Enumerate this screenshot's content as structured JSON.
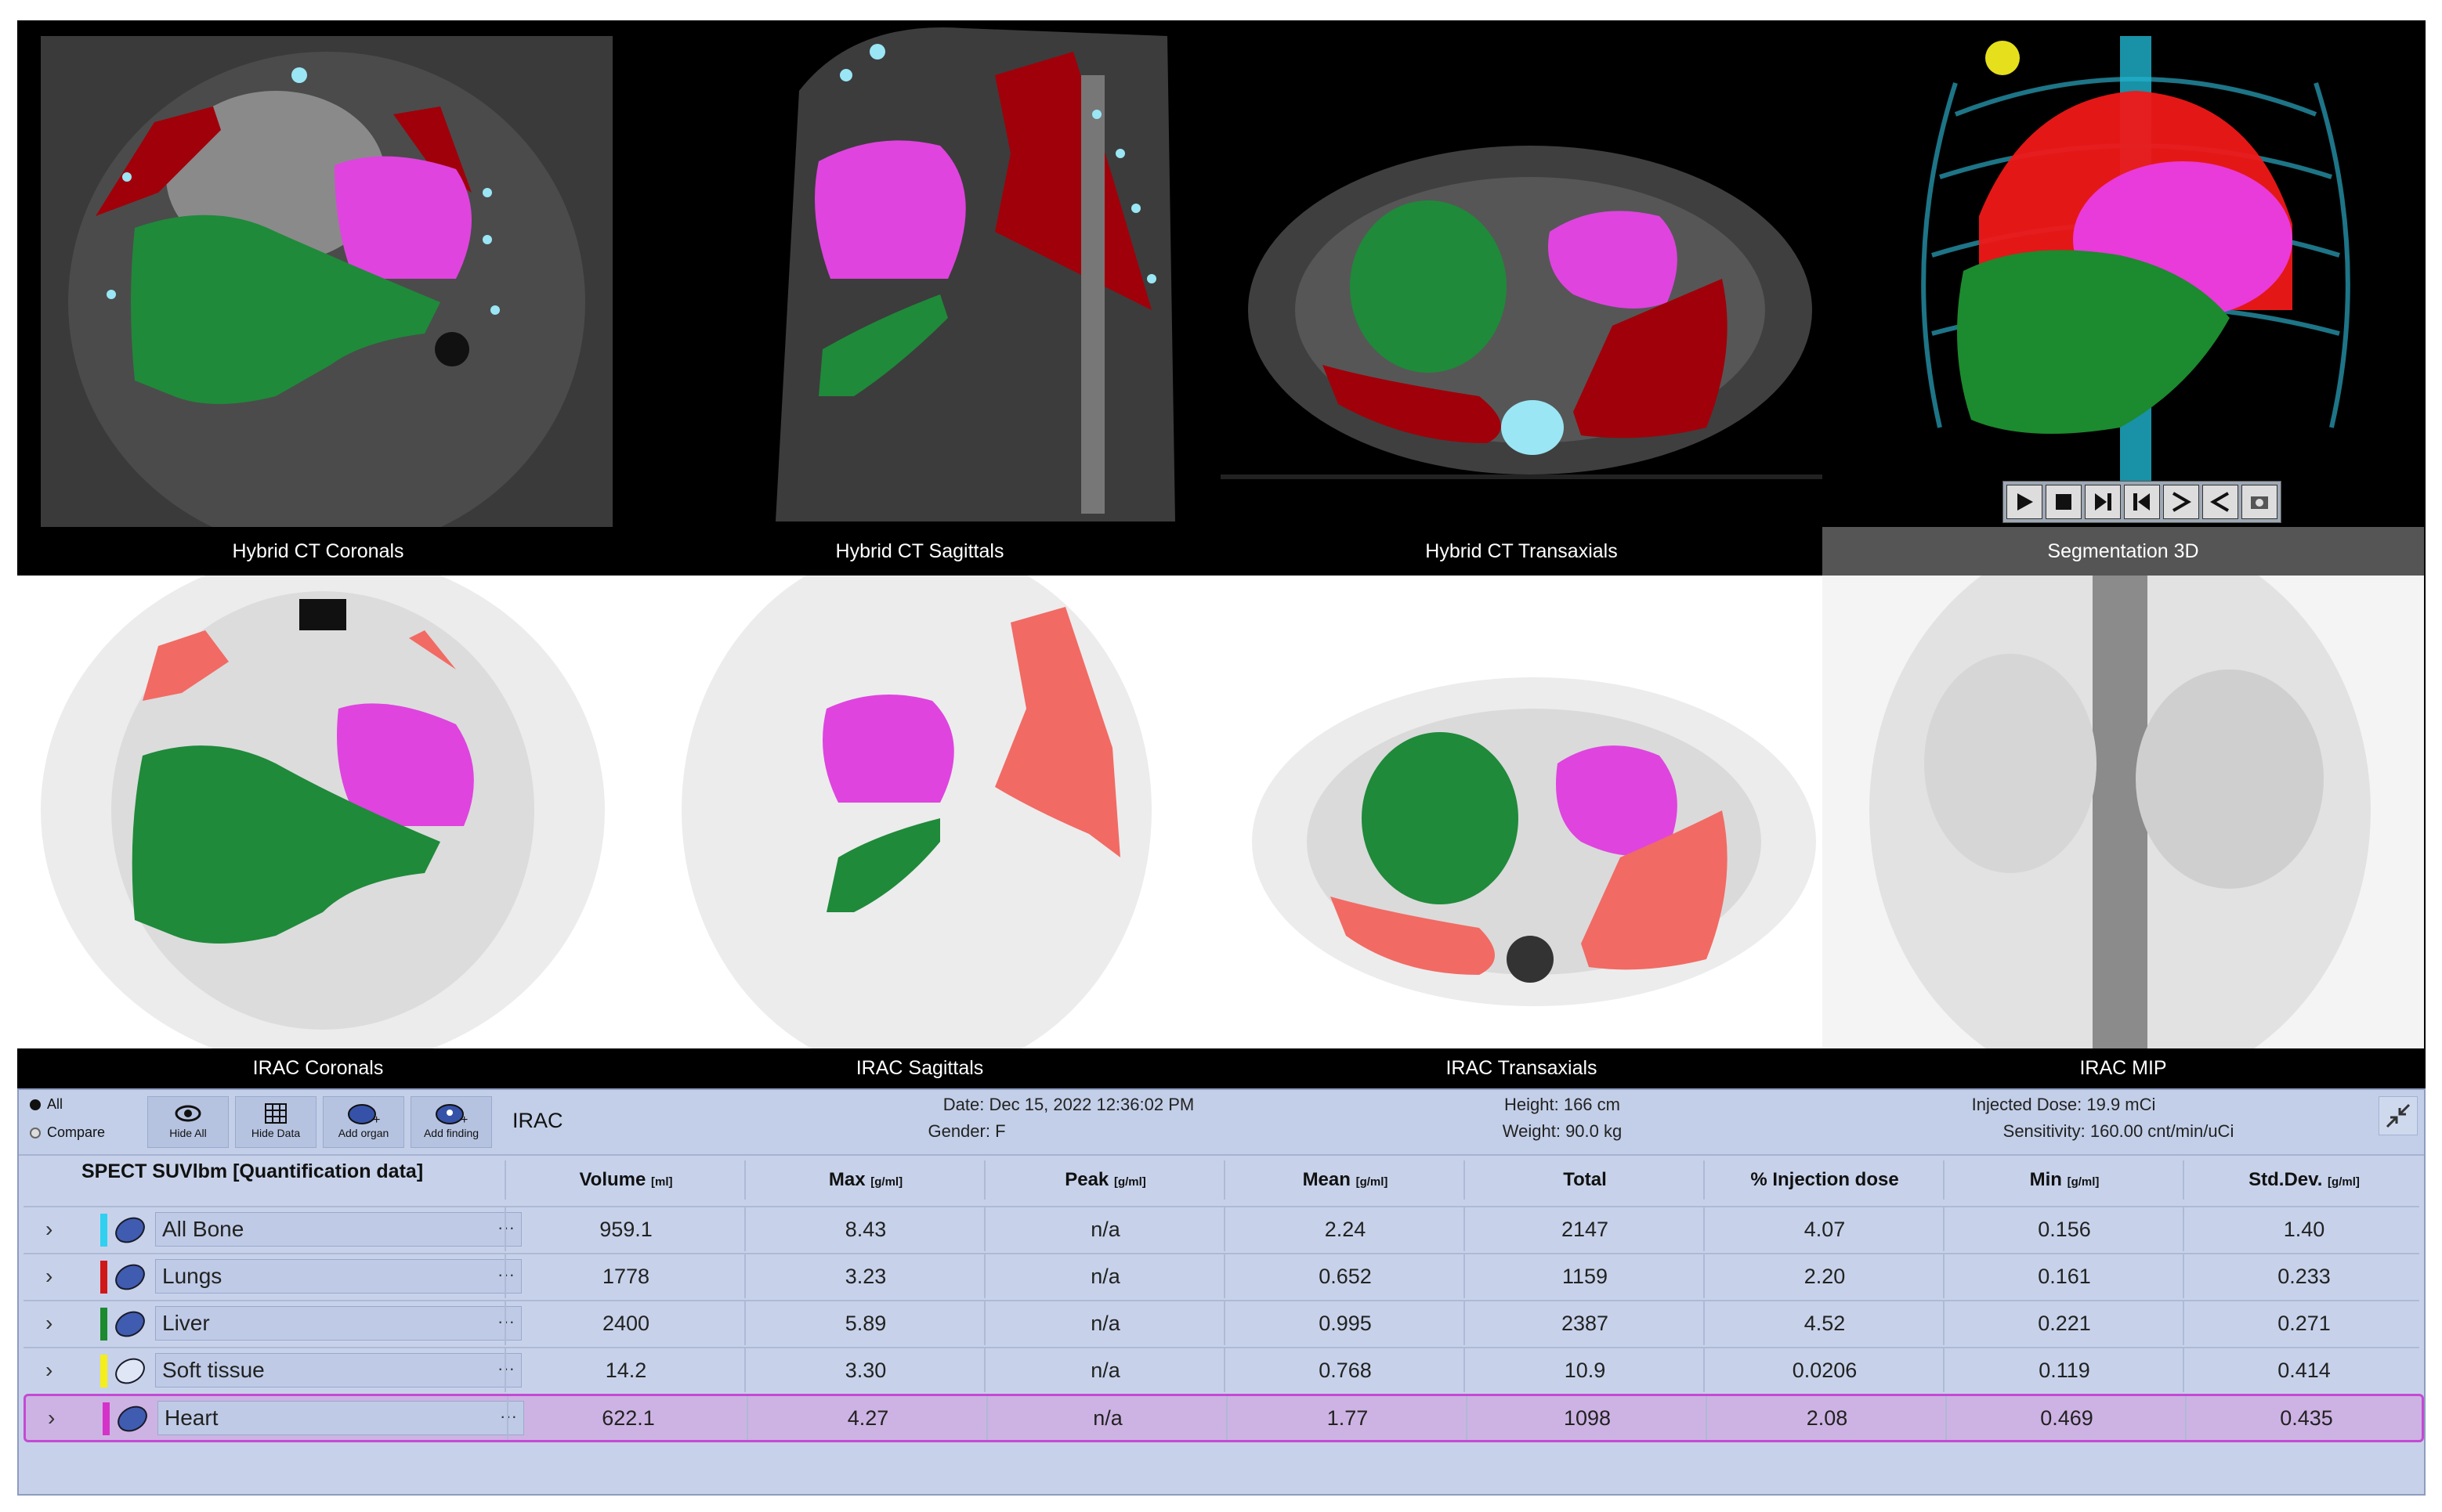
{
  "views": {
    "ct": [
      {
        "label": "Hybrid CT Coronals"
      },
      {
        "label": "Hybrid CT Sagittals"
      },
      {
        "label": "Hybrid CT Transaxials"
      },
      {
        "label": "Segmentation 3D"
      }
    ],
    "spect": [
      {
        "label": "IRAC Coronals"
      },
      {
        "label": "IRAC Sagittals"
      },
      {
        "label": "IRAC Transaxials"
      },
      {
        "label": "IRAC MIP"
      }
    ]
  },
  "toolbar": {
    "radio_all": "All",
    "radio_compare": "Compare",
    "hide_all": "Hide All",
    "hide_data": "Hide Data",
    "add_organ": "Add organ",
    "add_finding": "Add finding",
    "dataset": "IRAC"
  },
  "study": {
    "date": "Date: Dec 15, 2022 12:36:02 PM",
    "gender": "Gender: F",
    "height": "Height: 166 cm",
    "weight": "Weight: 90.0 kg",
    "dose": "Injected Dose: 19.9 mCi",
    "sensitivity": "Sensitivity: 160.00 cnt/min/uCi"
  },
  "table": {
    "title": "SPECT SUVlbm [Quantification data]",
    "columns": [
      {
        "name": "Volume",
        "unit": "[ml]"
      },
      {
        "name": "Max",
        "unit": "[g/ml]"
      },
      {
        "name": "Peak",
        "unit": "[g/ml]"
      },
      {
        "name": "Mean",
        "unit": "[g/ml]"
      },
      {
        "name": "Total",
        "unit": ""
      },
      {
        "name": "% Injection dose",
        "unit": ""
      },
      {
        "name": "Min",
        "unit": "[g/ml]"
      },
      {
        "name": "Std.Dev.",
        "unit": "[g/ml]"
      }
    ],
    "rows": [
      {
        "name": "All Bone",
        "color": "#2fd0f0",
        "values": [
          "959.1",
          "8.43",
          "n/a",
          "2.24",
          "2147",
          "4.07",
          "0.156",
          "1.40"
        ]
      },
      {
        "name": "Lungs",
        "color": "#d01818",
        "values": [
          "1778",
          "3.23",
          "n/a",
          "0.652",
          "1159",
          "2.20",
          "0.161",
          "0.233"
        ]
      },
      {
        "name": "Liver",
        "color": "#1c8a2e",
        "values": [
          "2400",
          "5.89",
          "n/a",
          "0.995",
          "2387",
          "4.52",
          "0.221",
          "0.271"
        ]
      },
      {
        "name": "Soft tissue",
        "color": "#f4ee1a",
        "values": [
          "14.2",
          "3.30",
          "n/a",
          "0.768",
          "10.9",
          "0.0206",
          "0.119",
          "0.414"
        ]
      },
      {
        "name": "Heart",
        "color": "#d532c9",
        "values": [
          "622.1",
          "4.27",
          "n/a",
          "1.77",
          "1098",
          "2.08",
          "0.469",
          "0.435"
        ]
      }
    ]
  },
  "colors": {
    "lungs": "#a0000a",
    "liver": "#1f8a3a",
    "heart": "#df44df",
    "bone": "#7fe2f4",
    "spect_lung": "#f26a64"
  },
  "player": [
    "play-icon",
    "stop-icon",
    "step-forward-icon",
    "step-back-icon",
    "fast-forward-icon",
    "rewind-icon",
    "capture-icon"
  ]
}
